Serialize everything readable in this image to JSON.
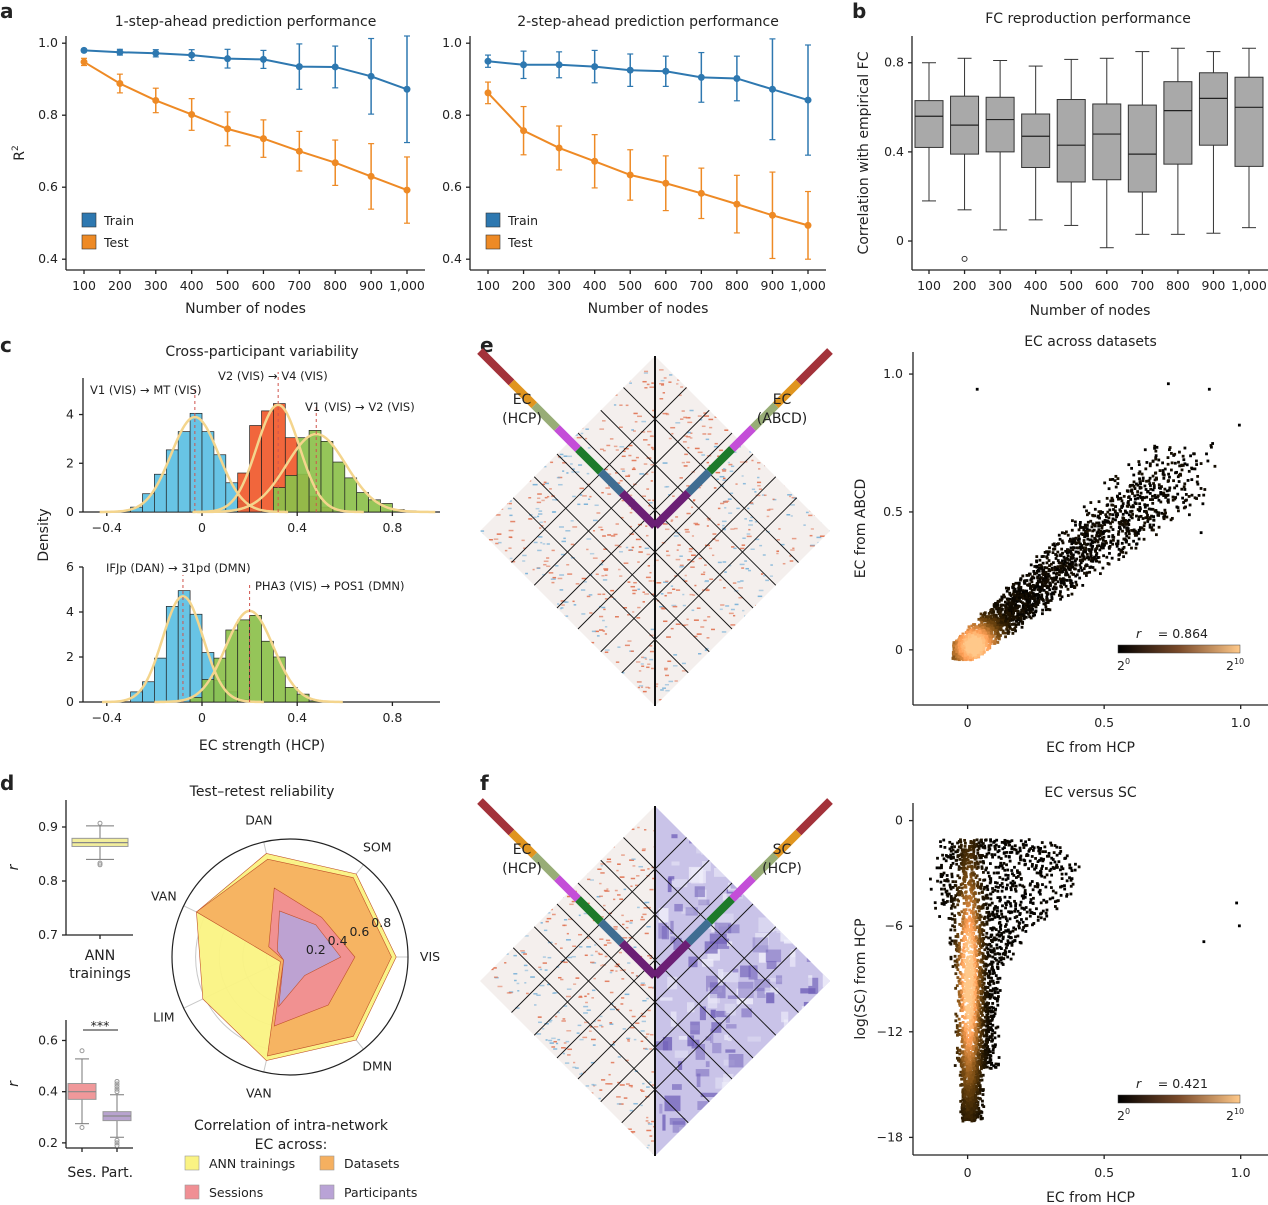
{
  "panel_letters": {
    "a": "a",
    "b": "b",
    "c": "c",
    "d": "d",
    "e": "e",
    "f": "f"
  },
  "chart_data": [
    {
      "id": "a1",
      "type": "line",
      "title": "1-step-ahead prediction performance",
      "xlabel": "Number of nodes",
      "ylabel": "R²",
      "ylim": [
        0.37,
        1.02
      ],
      "yticks": [
        "0.4",
        "0.6",
        "0.8",
        "1.0"
      ],
      "yticks_values": [
        0.4,
        0.6,
        0.8,
        1.0
      ],
      "categories": [
        "100",
        "200",
        "300",
        "400",
        "500",
        "600",
        "700",
        "800",
        "900",
        "1,000"
      ],
      "legend": {
        "position": "bottom-left",
        "entries": [
          "Train",
          "Test"
        ]
      },
      "series": [
        {
          "name": "Train",
          "color": "#2e78b0",
          "values": [
            0.98,
            0.975,
            0.972,
            0.967,
            0.957,
            0.955,
            0.935,
            0.934,
            0.908,
            0.872
          ],
          "err": [
            0.004,
            0.008,
            0.01,
            0.015,
            0.026,
            0.025,
            0.063,
            0.058,
            0.105,
            0.148
          ]
        },
        {
          "name": "Test",
          "color": "#ee8a25",
          "values": [
            0.948,
            0.888,
            0.841,
            0.802,
            0.762,
            0.735,
            0.7,
            0.668,
            0.63,
            0.592
          ],
          "err": [
            0.01,
            0.026,
            0.034,
            0.044,
            0.047,
            0.052,
            0.055,
            0.063,
            0.091,
            0.092
          ]
        }
      ]
    },
    {
      "id": "a2",
      "type": "line",
      "title": "2-step-ahead prediction performance",
      "xlabel": "Number of nodes",
      "ylabel": "",
      "ylim": [
        0.37,
        1.02
      ],
      "yticks": [
        "0.4",
        "0.6",
        "0.8",
        "1.0"
      ],
      "yticks_values": [
        0.4,
        0.6,
        0.8,
        1.0
      ],
      "categories": [
        "100",
        "200",
        "300",
        "400",
        "500",
        "600",
        "700",
        "800",
        "900",
        "1,000"
      ],
      "legend": {
        "position": "bottom-left",
        "entries": [
          "Train",
          "Test"
        ]
      },
      "series": [
        {
          "name": "Train",
          "color": "#2e78b0",
          "values": [
            0.95,
            0.94,
            0.94,
            0.935,
            0.925,
            0.922,
            0.905,
            0.902,
            0.872,
            0.842
          ],
          "err": [
            0.017,
            0.038,
            0.036,
            0.045,
            0.045,
            0.042,
            0.069,
            0.062,
            0.14,
            0.153
          ]
        },
        {
          "name": "Test",
          "color": "#ee8a25",
          "values": [
            0.862,
            0.757,
            0.709,
            0.672,
            0.634,
            0.611,
            0.583,
            0.553,
            0.522,
            0.494
          ],
          "err": [
            0.03,
            0.067,
            0.061,
            0.074,
            0.07,
            0.076,
            0.07,
            0.08,
            0.12,
            0.094
          ]
        }
      ]
    },
    {
      "id": "b",
      "type": "box",
      "title": "FC reproduction performance",
      "xlabel": "Number of nodes",
      "ylabel": "Correlation with empirical FC",
      "ylim": [
        -0.13,
        0.92
      ],
      "yticks": [
        "0",
        "0.4",
        "0.8"
      ],
      "yticks_values": [
        0,
        0.4,
        0.8
      ],
      "categories": [
        "100",
        "200",
        "300",
        "400",
        "500",
        "600",
        "700",
        "800",
        "900",
        "1,000"
      ],
      "boxes": [
        {
          "min": 0.18,
          "q1": 0.42,
          "median": 0.56,
          "q3": 0.63,
          "max": 0.8,
          "outliers": []
        },
        {
          "min": 0.14,
          "q1": 0.39,
          "median": 0.52,
          "q3": 0.65,
          "max": 0.82,
          "outliers": [
            -0.08
          ]
        },
        {
          "min": 0.05,
          "q1": 0.4,
          "median": 0.545,
          "q3": 0.645,
          "max": 0.81,
          "outliers": []
        },
        {
          "min": 0.095,
          "q1": 0.33,
          "median": 0.47,
          "q3": 0.57,
          "max": 0.785,
          "outliers": []
        },
        {
          "min": 0.07,
          "q1": 0.265,
          "median": 0.43,
          "q3": 0.635,
          "max": 0.815,
          "outliers": []
        },
        {
          "min": -0.03,
          "q1": 0.275,
          "median": 0.48,
          "q3": 0.615,
          "max": 0.82,
          "outliers": []
        },
        {
          "min": 0.03,
          "q1": 0.22,
          "median": 0.39,
          "q3": 0.61,
          "max": 0.85,
          "outliers": []
        },
        {
          "min": 0.03,
          "q1": 0.345,
          "median": 0.585,
          "q3": 0.715,
          "max": 0.865,
          "outliers": []
        },
        {
          "min": 0.035,
          "q1": 0.43,
          "median": 0.64,
          "q3": 0.755,
          "max": 0.85,
          "outliers": []
        },
        {
          "min": 0.06,
          "q1": 0.335,
          "median": 0.6,
          "q3": 0.735,
          "max": 0.865,
          "outliers": []
        }
      ],
      "box_color": "#a9a9a9"
    },
    {
      "id": "c_top",
      "type": "histogram",
      "title": "Cross-participant variability",
      "xlabel": "",
      "ylabel": "Density",
      "xlim": [
        -0.5,
        1.0
      ],
      "ylim": [
        0,
        5.5
      ],
      "xticks": [
        "−0.4",
        "0",
        "0.4",
        "0.8"
      ],
      "xticks_values": [
        -0.4,
        0,
        0.4,
        0.8
      ],
      "yticks": [
        "0",
        "2",
        "4"
      ],
      "yticks_values": [
        0,
        2,
        4
      ],
      "bin_width": 0.05,
      "series": [
        {
          "name": "V1 (VIS) → MT (VIS)",
          "color": "#5bbfe3",
          "mean": -0.03,
          "sd": 0.1,
          "peak": 3.9,
          "bins_start": -0.35,
          "heights": [
            0.05,
            0.2,
            0.75,
            1.55,
            2.55,
            3.3,
            4.05,
            3.3,
            2.35,
            1.2,
            0.45,
            0.15
          ]
        },
        {
          "name": "V2 (VIS) → V4 (VIS)",
          "color": "#f0592b",
          "mean": 0.32,
          "sd": 0.09,
          "peak": 4.4,
          "bins_start": 0.15,
          "heights": [
            1.6,
            3.55,
            4.15,
            4.45,
            3.05,
            1.55,
            0.65,
            0.2
          ]
        },
        {
          "name": "V1 (VIS) → V2 (VIS)",
          "color": "#8cc04b",
          "mean": 0.48,
          "sd": 0.125,
          "peak": 3.2,
          "bins_start": 0.3,
          "heights": [
            1.0,
            1.5,
            3.05,
            3.35,
            2.9,
            2.05,
            1.4,
            0.8,
            0.5,
            0.35,
            0.1,
            0.05
          ]
        }
      ],
      "fit_color": "#f4d58d",
      "annotations": [
        "V1 (VIS) → MT (VIS)",
        "V2 (VIS) → V4 (VIS)",
        "V1 (VIS) → V2 (VIS)"
      ]
    },
    {
      "id": "c_bottom",
      "type": "histogram",
      "xlabel": "EC strength (HCP)",
      "ylabel": "Density",
      "xlim": [
        -0.5,
        1.0
      ],
      "ylim": [
        0,
        6
      ],
      "xticks": [
        "−0.4",
        "0",
        "0.4",
        "0.8"
      ],
      "xticks_values": [
        -0.4,
        0,
        0.4,
        0.8
      ],
      "yticks": [
        "0",
        "2",
        "4",
        "6"
      ],
      "yticks_values": [
        0,
        2,
        4,
        6
      ],
      "bin_width": 0.05,
      "series": [
        {
          "name": "IFJp (DAN) → 31pd (DMN)",
          "color": "#5bbfe3",
          "mean": -0.08,
          "sd": 0.085,
          "peak": 4.7,
          "bins_start": -0.3,
          "heights": [
            0.45,
            0.9,
            1.95,
            4.25,
            4.95,
            3.9,
            2.2,
            0.95,
            0.45,
            0.1
          ]
        },
        {
          "name": "PHA3 (VIS) → POS1 (DMN)",
          "color": "#8cc04b",
          "mean": 0.2,
          "sd": 0.1,
          "peak": 4.05,
          "bins_start": -0.05,
          "heights": [
            0.2,
            1.0,
            1.95,
            3.2,
            3.65,
            3.85,
            2.7,
            2.0,
            0.65,
            0.35,
            0.05
          ]
        }
      ],
      "fit_color": "#f4d58d",
      "annotations": [
        "IFJp (DAN) → 31pd (DMN)",
        "PHA3 (VIS) → POS1 (DMN)"
      ]
    },
    {
      "id": "d_top",
      "type": "box",
      "ylabel": "r",
      "ylim": [
        0.7,
        0.95
      ],
      "yticks": [
        "0.7",
        "0.8",
        "0.9"
      ],
      "yticks_values": [
        0.7,
        0.8,
        0.9
      ],
      "categories": [
        "ANN\ntrainings"
      ],
      "category_lines": [
        "ANN",
        "trainings"
      ],
      "boxes": [
        {
          "min": 0.84,
          "q1": 0.864,
          "median": 0.871,
          "q3": 0.879,
          "max": 0.902,
          "outliers": [
            0.907,
            0.83,
            0.833
          ],
          "color": "#f2ee9c"
        }
      ]
    },
    {
      "id": "d_bottom",
      "type": "box",
      "ylabel": "r",
      "ylim": [
        0.18,
        0.68
      ],
      "yticks": [
        "0.2",
        "0.4",
        "0.6"
      ],
      "yticks_values": [
        0.2,
        0.4,
        0.6
      ],
      "categories": [
        "Ses.",
        "Part."
      ],
      "significance": "***",
      "boxes": [
        {
          "min": 0.275,
          "q1": 0.37,
          "median": 0.4,
          "q3": 0.432,
          "max": 0.528,
          "outliers": [
            0.56,
            0.26
          ],
          "color": "#f0989a"
        },
        {
          "min": 0.222,
          "q1": 0.287,
          "median": 0.305,
          "q3": 0.322,
          "max": 0.388,
          "outliers": [
            0.44,
            0.43,
            0.42,
            0.41,
            0.4,
            0.21,
            0.2,
            0.19
          ],
          "color": "#b8a3cf"
        }
      ]
    },
    {
      "id": "d_radar",
      "type": "radar",
      "title": "Test–retest reliability",
      "axes": [
        "VIS",
        "SOM",
        "DAN",
        "VAN",
        "LIM",
        "VAN",
        "DMN"
      ],
      "rlim": [
        0,
        1.0
      ],
      "rticks": [
        "0.2",
        "0.4",
        "0.6",
        "0.8"
      ],
      "rticks_values": [
        0.2,
        0.4,
        0.6,
        0.8
      ],
      "legend_title_lines": [
        "Correlation of intra-network",
        "EC across:"
      ],
      "series": [
        {
          "name": "ANN trainings",
          "color": "#faf383",
          "values": [
            0.9,
            0.9,
            0.9,
            0.88,
            0.82,
            0.9,
            0.9
          ]
        },
        {
          "name": "Datasets",
          "color": "#f5b060",
          "values": [
            0.86,
            0.86,
            0.85,
            0.88,
            0.09,
            0.86,
            0.86
          ]
        },
        {
          "name": "Sessions",
          "color": "#f08f94",
          "values": [
            0.55,
            0.43,
            0.6,
            0.2,
            0.06,
            0.6,
            0.52
          ]
        },
        {
          "name": "Participants",
          "color": "#b9a3d6",
          "values": [
            0.43,
            0.35,
            0.4,
            0.12,
            0.06,
            0.43,
            0.2
          ]
        }
      ]
    },
    {
      "id": "e_scatter",
      "type": "heatmap",
      "title": "EC across datasets",
      "xlabel": "EC from HCP",
      "ylabel": "EC from ABCD",
      "xlim": [
        -0.2,
        1.1
      ],
      "ylim": [
        -0.2,
        1.08
      ],
      "xticks": [
        "0",
        "0.5",
        "1.0"
      ],
      "xticks_values": [
        0,
        0.5,
        1.0
      ],
      "yticks": [
        "0",
        "0.5",
        "1.0"
      ],
      "yticks_values": [
        0,
        0.5,
        1.0
      ],
      "r_label": "r",
      "r_value": "= 0.864",
      "colorbar": {
        "min_label_base": "2",
        "min_label_exp": "0",
        "max_label_base": "2",
        "max_label_exp": "10"
      }
    },
    {
      "id": "f_scatter",
      "type": "heatmap",
      "title": "EC versus SC",
      "xlabel": "EC from HCP",
      "ylabel": "log(SC) from HCP",
      "xlim": [
        -0.2,
        1.1
      ],
      "ylim": [
        -19,
        1
      ],
      "xticks": [
        "0",
        "0.5",
        "1.0"
      ],
      "xticks_values": [
        0,
        0.5,
        1.0
      ],
      "yticks": [
        "−18",
        "−12",
        "−6",
        "0"
      ],
      "yticks_values": [
        -18,
        -12,
        -6,
        0
      ],
      "r_label": "r",
      "r_value": "= 0.421",
      "colorbar": {
        "min_label_base": "2",
        "min_label_exp": "0",
        "max_label_base": "2",
        "max_label_exp": "10"
      }
    },
    {
      "id": "e_matrix",
      "type": "matrix",
      "left_label_lines": [
        "EC",
        "(HCP)"
      ],
      "right_label_lines": [
        "EC",
        "(ABCD)"
      ],
      "network_colors": [
        "#a3323a",
        "#e0951f",
        "#98ad77",
        "#c44ed8",
        "#1d7a2a",
        "#3f6d92",
        "#6b1f75"
      ],
      "left_palette": "red-blue",
      "right_palette": "red-blue"
    },
    {
      "id": "f_matrix",
      "type": "matrix",
      "left_label_lines": [
        "EC",
        "(HCP)"
      ],
      "right_label_lines": [
        "SC",
        "(HCP)"
      ],
      "network_colors": [
        "#a3323a",
        "#e0951f",
        "#98ad77",
        "#c44ed8",
        "#1d7a2a",
        "#3f6d92",
        "#6b1f75"
      ],
      "left_palette": "red-blue",
      "right_palette": "purple"
    }
  ]
}
